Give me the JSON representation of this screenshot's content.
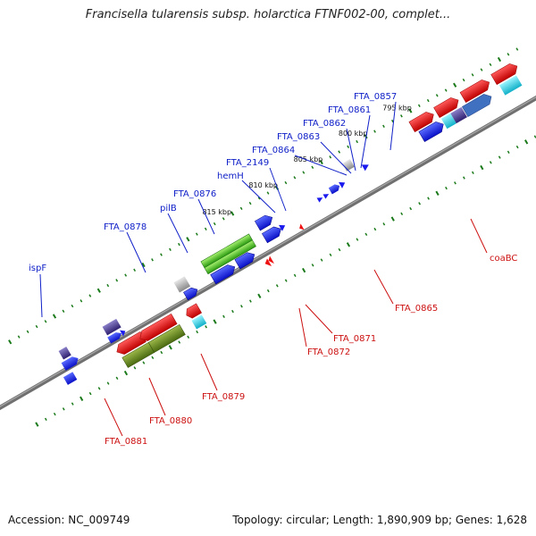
{
  "title": "Francisella tularensis subsp. holarctica FTNF002-00, complet...",
  "accession": "Accession: NC_009749",
  "topology": "Topology: circular; Length: 1,890,909 bp; Genes: 1,628",
  "scale": [
    {
      "label": "795 kbp"
    },
    {
      "label": "800 kbp"
    },
    {
      "label": "805 kbp"
    },
    {
      "label": "810 kbp"
    },
    {
      "label": "815 kbp"
    }
  ],
  "labels_top": [
    {
      "text": "FTA_0857"
    },
    {
      "text": "FTA_0861"
    },
    {
      "text": "FTA_0862"
    },
    {
      "text": "FTA_0863"
    },
    {
      "text": "FTA_0864"
    },
    {
      "text": "FTA_2149"
    },
    {
      "text": "hemH"
    },
    {
      "text": "FTA_0876"
    },
    {
      "text": "pilB"
    },
    {
      "text": "FTA_0878"
    },
    {
      "text": "ispF"
    }
  ],
  "labels_bottom": [
    {
      "text": "coaBC"
    },
    {
      "text": "FTA_0865"
    },
    {
      "text": "FTA_0871"
    },
    {
      "text": "FTA_0872"
    },
    {
      "text": "FTA_0879"
    },
    {
      "text": "FTA_0880"
    },
    {
      "text": "FTA_0881"
    }
  ],
  "colors": {
    "forward_cds": "#1a1aee",
    "reverse_cds": "#ee1111",
    "olive": "#6b8e1e",
    "green": "#44cc22",
    "cyan": "#22d8e8",
    "purple": "#504090",
    "gray": "#b0b0b0",
    "backbone": "#707070"
  }
}
